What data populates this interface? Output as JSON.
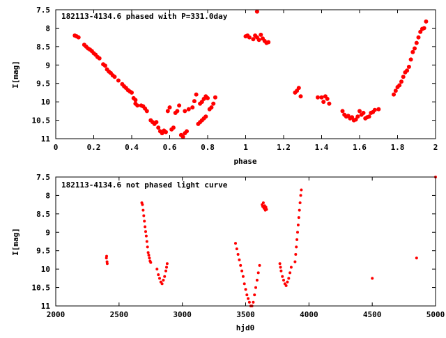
{
  "colors": {
    "point": "#ff0000",
    "frame": "#000000",
    "background": "#ffffff"
  },
  "chart_data": [
    {
      "type": "scatter",
      "title": "182113-4134.6 phased with P=331.0day",
      "xlabel": "phase",
      "ylabel": "I[mag]",
      "xlim": [
        0,
        2
      ],
      "ylim": [
        7.5,
        11
      ],
      "y_inverted": true,
      "grid": false,
      "legend": "none",
      "xticks": [
        "0",
        "0.2",
        "0.4",
        "0.6",
        "0.8",
        "1",
        "1.2",
        "1.4",
        "1.6",
        "1.8",
        "2"
      ],
      "xtick_values": [
        0,
        0.2,
        0.4,
        0.6,
        0.8,
        1.0,
        1.2,
        1.4,
        1.6,
        1.8,
        2.0
      ],
      "yticks": [
        "7.5",
        "8",
        "8.5",
        "9",
        "9.5",
        "10",
        "10.5",
        "11"
      ],
      "ytick_values": [
        7.5,
        8,
        8.5,
        9,
        9.5,
        10,
        10.5,
        11
      ],
      "points": [
        [
          0.1,
          8.2
        ],
        [
          0.11,
          8.22
        ],
        [
          0.12,
          8.25
        ],
        [
          0.15,
          8.45
        ],
        [
          0.16,
          8.5
        ],
        [
          0.17,
          8.55
        ],
        [
          0.18,
          8.58
        ],
        [
          0.19,
          8.62
        ],
        [
          0.2,
          8.68
        ],
        [
          0.21,
          8.72
        ],
        [
          0.22,
          8.78
        ],
        [
          0.23,
          8.82
        ],
        [
          0.25,
          8.98
        ],
        [
          0.26,
          9.02
        ],
        [
          0.27,
          9.12
        ],
        [
          0.28,
          9.18
        ],
        [
          0.29,
          9.22
        ],
        [
          0.3,
          9.28
        ],
        [
          0.31,
          9.32
        ],
        [
          0.33,
          9.42
        ],
        [
          0.35,
          9.52
        ],
        [
          0.36,
          9.58
        ],
        [
          0.37,
          9.62
        ],
        [
          0.38,
          9.68
        ],
        [
          0.39,
          9.72
        ],
        [
          0.4,
          9.75
        ],
        [
          0.41,
          9.9
        ],
        [
          0.42,
          9.95
        ],
        [
          0.42,
          10.05
        ],
        [
          0.43,
          10.1
        ],
        [
          0.45,
          10.1
        ],
        [
          0.46,
          10.12
        ],
        [
          0.47,
          10.18
        ],
        [
          0.48,
          10.25
        ],
        [
          0.5,
          10.5
        ],
        [
          0.51,
          10.55
        ],
        [
          0.52,
          10.6
        ],
        [
          0.53,
          10.55
        ],
        [
          0.54,
          10.7
        ],
        [
          0.55,
          10.8
        ],
        [
          0.56,
          10.85
        ],
        [
          0.57,
          10.78
        ],
        [
          0.58,
          10.82
        ],
        [
          0.59,
          10.25
        ],
        [
          0.6,
          10.15
        ],
        [
          0.61,
          10.75
        ],
        [
          0.62,
          10.7
        ],
        [
          0.63,
          10.3
        ],
        [
          0.64,
          10.25
        ],
        [
          0.65,
          10.1
        ],
        [
          0.66,
          10.9
        ],
        [
          0.67,
          10.95
        ],
        [
          0.68,
          10.85
        ],
        [
          0.69,
          10.8
        ],
        [
          0.68,
          10.25
        ],
        [
          0.7,
          10.2
        ],
        [
          0.72,
          10.15
        ],
        [
          0.73,
          9.98
        ],
        [
          0.74,
          9.8
        ],
        [
          0.76,
          10.05
        ],
        [
          0.77,
          10.0
        ],
        [
          0.78,
          9.92
        ],
        [
          0.79,
          9.85
        ],
        [
          0.8,
          9.9
        ],
        [
          0.75,
          10.6
        ],
        [
          0.76,
          10.55
        ],
        [
          0.77,
          10.5
        ],
        [
          0.78,
          10.45
        ],
        [
          0.79,
          10.4
        ],
        [
          0.81,
          10.2
        ],
        [
          0.82,
          10.15
        ],
        [
          0.83,
          10.05
        ],
        [
          0.84,
          9.88
        ],
        [
          1.0,
          8.22
        ],
        [
          1.01,
          8.2
        ],
        [
          1.02,
          8.25
        ],
        [
          1.04,
          8.3
        ],
        [
          1.05,
          8.2
        ],
        [
          1.06,
          8.25
        ],
        [
          1.06,
          7.55
        ],
        [
          1.07,
          8.32
        ],
        [
          1.08,
          8.18
        ],
        [
          1.09,
          8.28
        ],
        [
          1.1,
          8.35
        ],
        [
          1.11,
          8.4
        ],
        [
          1.12,
          8.38
        ],
        [
          1.26,
          9.75
        ],
        [
          1.27,
          9.7
        ],
        [
          1.28,
          9.62
        ],
        [
          1.29,
          9.85
        ],
        [
          1.38,
          9.88
        ],
        [
          1.4,
          9.88
        ],
        [
          1.41,
          10.0
        ],
        [
          1.42,
          9.85
        ],
        [
          1.43,
          9.92
        ],
        [
          1.44,
          10.05
        ],
        [
          1.51,
          10.25
        ],
        [
          1.52,
          10.35
        ],
        [
          1.53,
          10.4
        ],
        [
          1.54,
          10.38
        ],
        [
          1.55,
          10.45
        ],
        [
          1.56,
          10.42
        ],
        [
          1.57,
          10.5
        ],
        [
          1.58,
          10.48
        ],
        [
          1.59,
          10.4
        ],
        [
          1.6,
          10.25
        ],
        [
          1.61,
          10.35
        ],
        [
          1.62,
          10.3
        ],
        [
          1.63,
          10.45
        ],
        [
          1.64,
          10.42
        ],
        [
          1.65,
          10.4
        ],
        [
          1.66,
          10.3
        ],
        [
          1.67,
          10.28
        ],
        [
          1.68,
          10.22
        ],
        [
          1.7,
          10.2
        ],
        [
          1.78,
          9.8
        ],
        [
          1.79,
          9.7
        ],
        [
          1.8,
          9.6
        ],
        [
          1.81,
          9.55
        ],
        [
          1.82,
          9.45
        ],
        [
          1.83,
          9.32
        ],
        [
          1.84,
          9.2
        ],
        [
          1.85,
          9.15
        ],
        [
          1.86,
          9.05
        ],
        [
          1.87,
          8.85
        ],
        [
          1.88,
          8.65
        ],
        [
          1.89,
          8.55
        ],
        [
          1.9,
          8.4
        ],
        [
          1.91,
          8.25
        ],
        [
          1.92,
          8.1
        ],
        [
          1.93,
          8.02
        ],
        [
          1.94,
          8.0
        ],
        [
          1.95,
          7.82
        ]
      ]
    },
    {
      "type": "scatter",
      "title": "182113-4134.6 not phased light curve",
      "xlabel": "hjd0",
      "ylabel": "I[mag]",
      "xlim": [
        2000,
        5000
      ],
      "ylim": [
        7.5,
        11
      ],
      "y_inverted": true,
      "grid": false,
      "legend": "none",
      "xticks": [
        "2000",
        "2500",
        "3000",
        "3500",
        "4000",
        "4500",
        "5000"
      ],
      "xtick_values": [
        2000,
        2500,
        3000,
        3500,
        4000,
        4500,
        5000
      ],
      "yticks": [
        "7.5",
        "8",
        "8.5",
        "9",
        "9.5",
        "10",
        "10.5",
        "11"
      ],
      "ytick_values": [
        7.5,
        8,
        8.5,
        9,
        9.5,
        10,
        10.5,
        11
      ],
      "points": [
        [
          2400,
          9.7
        ],
        [
          2402,
          9.65
        ],
        [
          2405,
          9.8
        ],
        [
          2407,
          9.85
        ],
        [
          2680,
          8.2
        ],
        [
          2685,
          8.25
        ],
        [
          2690,
          8.4
        ],
        [
          2695,
          8.55
        ],
        [
          2700,
          8.7
        ],
        [
          2705,
          8.85
        ],
        [
          2710,
          8.98
        ],
        [
          2715,
          9.1
        ],
        [
          2720,
          9.25
        ],
        [
          2725,
          9.4
        ],
        [
          2730,
          9.55
        ],
        [
          2735,
          9.62
        ],
        [
          2740,
          9.7
        ],
        [
          2745,
          9.78
        ],
        [
          2750,
          9.82
        ],
        [
          2800,
          10.0
        ],
        [
          2810,
          10.15
        ],
        [
          2820,
          10.25
        ],
        [
          2830,
          10.35
        ],
        [
          2840,
          10.4
        ],
        [
          2850,
          10.3
        ],
        [
          2860,
          10.2
        ],
        [
          2870,
          10.05
        ],
        [
          2875,
          9.95
        ],
        [
          2880,
          9.85
        ],
        [
          3420,
          9.3
        ],
        [
          3430,
          9.45
        ],
        [
          3440,
          9.6
        ],
        [
          3450,
          9.75
        ],
        [
          3460,
          9.9
        ],
        [
          3470,
          10.05
        ],
        [
          3480,
          10.2
        ],
        [
          3490,
          10.4
        ],
        [
          3500,
          10.55
        ],
        [
          3510,
          10.7
        ],
        [
          3520,
          10.8
        ],
        [
          3530,
          10.9
        ],
        [
          3540,
          11.0
        ],
        [
          3550,
          11.05
        ],
        [
          3560,
          10.9
        ],
        [
          3570,
          10.7
        ],
        [
          3580,
          10.5
        ],
        [
          3590,
          10.3
        ],
        [
          3600,
          10.1
        ],
        [
          3610,
          9.9
        ],
        [
          3630,
          8.25
        ],
        [
          3635,
          8.3
        ],
        [
          3640,
          8.2
        ],
        [
          3645,
          8.35
        ],
        [
          3650,
          8.28
        ],
        [
          3655,
          8.4
        ],
        [
          3660,
          8.32
        ],
        [
          3665,
          8.38
        ],
        [
          3770,
          9.85
        ],
        [
          3775,
          9.95
        ],
        [
          3780,
          10.05
        ],
        [
          3790,
          10.2
        ],
        [
          3800,
          10.3
        ],
        [
          3810,
          10.4
        ],
        [
          3820,
          10.45
        ],
        [
          3830,
          10.35
        ],
        [
          3840,
          10.25
        ],
        [
          3850,
          10.1
        ],
        [
          3860,
          9.95
        ],
        [
          3890,
          9.8
        ],
        [
          3895,
          9.6
        ],
        [
          3900,
          9.4
        ],
        [
          3905,
          9.2
        ],
        [
          3910,
          9.0
        ],
        [
          3915,
          8.8
        ],
        [
          3920,
          8.6
        ],
        [
          3925,
          8.4
        ],
        [
          3930,
          8.2
        ],
        [
          3935,
          8.0
        ],
        [
          3940,
          7.85
        ],
        [
          4500,
          10.25
        ],
        [
          4850,
          9.7
        ],
        [
          5000,
          7.5
        ]
      ]
    }
  ]
}
